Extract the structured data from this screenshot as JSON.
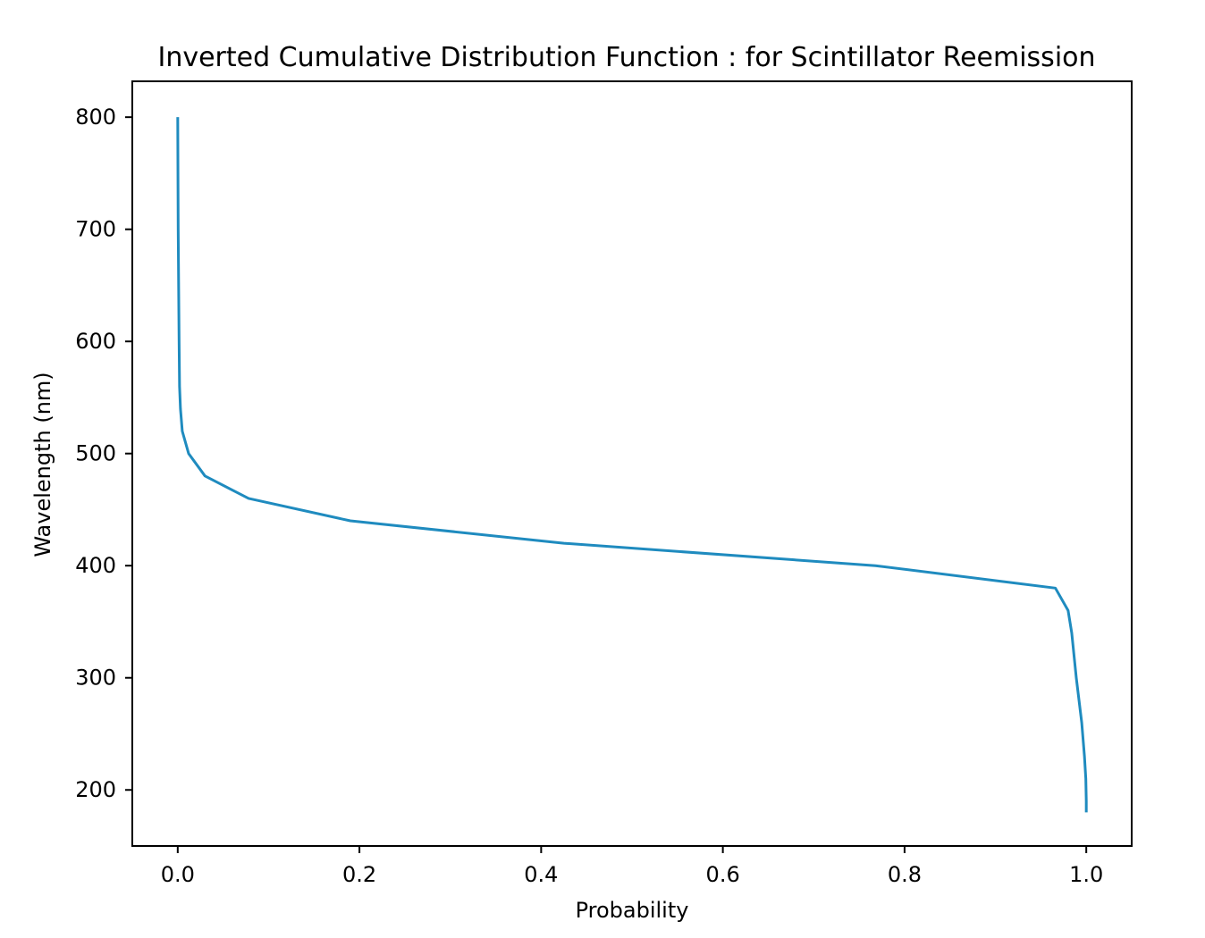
{
  "chart_data": {
    "type": "line",
    "title": "Inverted Cumulative Distribution Function : for Scintillator Reemission",
    "xlabel": "Probability",
    "ylabel": "Wavelength (nm)",
    "xlim": [
      -0.05,
      1.05
    ],
    "ylim": [
      150,
      832
    ],
    "grid": false,
    "legend": "none",
    "x_ticks": [
      0.0,
      0.2,
      0.4,
      0.6,
      0.8,
      1.0
    ],
    "x_tick_labels": [
      "0.0",
      "0.2",
      "0.4",
      "0.6",
      "0.8",
      "1.0"
    ],
    "y_ticks": [
      200,
      300,
      400,
      500,
      600,
      700,
      800
    ],
    "y_tick_labels": [
      "200",
      "300",
      "400",
      "500",
      "600",
      "700",
      "800"
    ],
    "line_color": "#1f8bbf",
    "series": [
      {
        "name": "reemission",
        "x": [
          0.0,
          0.0005,
          0.001,
          0.0015,
          0.002,
          0.003,
          0.005,
          0.012,
          0.03,
          0.078,
          0.19,
          0.425,
          0.768,
          0.966,
          0.98,
          0.984,
          0.989,
          0.995,
          0.998,
          0.9995,
          1.0,
          1.0
        ],
        "y": [
          800,
          700,
          650,
          600,
          560,
          540,
          520,
          500,
          480,
          460,
          440,
          420,
          400,
          380,
          360,
          340,
          300,
          260,
          230,
          210,
          190,
          180
        ]
      }
    ]
  }
}
